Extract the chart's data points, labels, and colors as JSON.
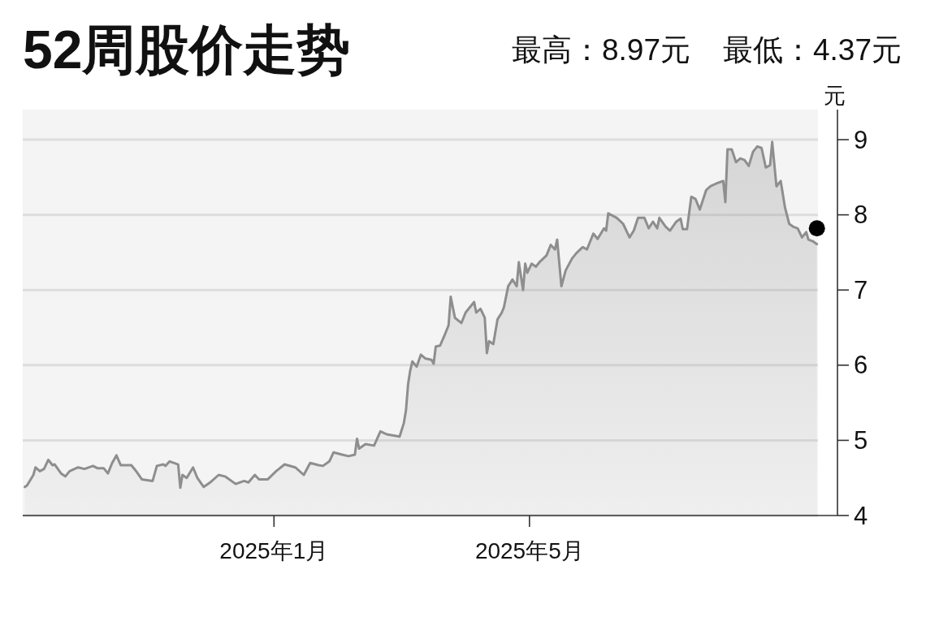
{
  "chart_data": {
    "type": "area",
    "title": "52周股价走势",
    "annotations": [
      "最高：8.97元",
      "最低：4.37元"
    ],
    "ylabel": "元",
    "xlim": [
      "2024-09-05",
      "2025-09-13T12:00"
    ],
    "xticks": [
      {
        "value": "2025-01-01",
        "label": "2025年1月"
      },
      {
        "value": "2025-05-01",
        "label": "2025年5月"
      }
    ],
    "ylim": [
      4,
      9.4
    ],
    "yticks": [
      4,
      5,
      6,
      7,
      8,
      9
    ],
    "grid": "y",
    "series": [
      {
        "color": "#8e8e8e",
        "x": [
          "2024-09-06",
          "2024-09-07",
          "2024-09-10",
          "2024-09-11",
          "2024-09-13",
          "2024-09-15",
          "2024-09-17",
          "2024-09-19",
          "2024-09-20",
          "2024-09-23",
          "2024-09-25",
          "2024-09-27",
          "2024-10-01",
          "2024-10-04",
          "2024-10-08",
          "2024-10-10",
          "2024-10-13",
          "2024-10-15",
          "2024-10-17",
          "2024-10-19",
          "2024-10-21",
          "2024-10-26",
          "2024-10-28",
          "2024-10-31",
          "2024-11-05",
          "2024-11-07",
          "2024-11-10",
          "2024-11-11",
          "2024-11-13",
          "2024-11-17",
          "2024-11-18",
          "2024-11-19",
          "2024-11-21",
          "2024-11-24",
          "2024-11-26",
          "2024-11-29",
          "2024-12-02",
          "2024-12-06",
          "2024-12-09",
          "2024-12-14",
          "2024-12-18",
          "2024-12-20",
          "2024-12-23",
          "2024-12-25",
          "2024-12-29",
          "2025-01-02",
          "2025-01-06",
          "2025-01-11",
          "2025-01-15",
          "2025-01-18",
          "2025-01-22",
          "2025-01-24",
          "2025-01-27",
          "2025-01-29",
          "2025-02-02",
          "2025-02-05",
          "2025-02-08",
          "2025-02-09",
          "2025-02-10",
          "2025-02-13",
          "2025-02-17",
          "2025-02-20",
          "2025-02-23",
          "2025-03-01",
          "2025-03-03",
          "2025-03-04",
          "2025-03-05",
          "2025-03-06",
          "2025-03-07",
          "2025-03-09",
          "2025-03-11",
          "2025-03-13",
          "2025-03-16",
          "2025-03-17",
          "2025-03-18",
          "2025-03-20",
          "2025-03-22",
          "2025-03-24",
          "2025-03-25",
          "2025-03-27",
          "2025-03-30",
          "2025-04-01",
          "2025-04-05",
          "2025-04-06",
          "2025-04-08",
          "2025-04-10",
          "2025-04-11",
          "2025-04-12",
          "2025-04-14",
          "2025-04-16",
          "2025-04-18",
          "2025-04-19",
          "2025-04-21",
          "2025-04-23",
          "2025-04-25",
          "2025-04-26",
          "2025-04-28",
          "2025-04-29",
          "2025-04-30",
          "2025-05-02",
          "2025-05-04",
          "2025-05-06",
          "2025-05-09",
          "2025-05-11",
          "2025-05-13",
          "2025-05-14",
          "2025-05-16",
          "2025-05-18",
          "2025-05-21",
          "2025-05-23",
          "2025-05-26",
          "2025-05-28",
          "2025-05-31",
          "2025-06-02",
          "2025-06-05",
          "2025-06-06",
          "2025-06-07",
          "2025-06-11",
          "2025-06-14",
          "2025-06-17",
          "2025-06-19",
          "2025-06-21",
          "2025-06-24",
          "2025-06-26",
          "2025-06-28",
          "2025-06-30",
          "2025-07-01",
          "2025-07-04",
          "2025-07-06",
          "2025-07-09",
          "2025-07-11",
          "2025-07-12",
          "2025-07-14",
          "2025-07-16",
          "2025-07-18",
          "2025-07-20",
          "2025-07-23",
          "2025-07-25",
          "2025-07-28",
          "2025-07-31",
          "2025-08-01",
          "2025-08-02",
          "2025-08-04",
          "2025-08-06",
          "2025-08-08",
          "2025-08-10",
          "2025-08-12",
          "2025-08-14",
          "2025-08-16",
          "2025-08-18",
          "2025-08-20",
          "2025-08-22",
          "2025-08-23",
          "2025-08-25",
          "2025-08-27",
          "2025-08-29",
          "2025-08-31",
          "2025-09-02",
          "2025-09-04",
          "2025-09-06",
          "2025-09-08",
          "2025-09-09",
          "2025-09-11",
          "2025-09-13"
        ],
        "values": [
          4.38,
          4.4,
          4.54,
          4.64,
          4.59,
          4.62,
          4.74,
          4.67,
          4.68,
          4.56,
          4.52,
          4.59,
          4.64,
          4.62,
          4.66,
          4.63,
          4.63,
          4.56,
          4.7,
          4.8,
          4.67,
          4.67,
          4.6,
          4.48,
          4.46,
          4.66,
          4.68,
          4.66,
          4.72,
          4.68,
          4.37,
          4.54,
          4.5,
          4.64,
          4.5,
          4.38,
          4.44,
          4.54,
          4.52,
          4.42,
          4.46,
          4.44,
          4.54,
          4.48,
          4.48,
          4.59,
          4.68,
          4.64,
          4.54,
          4.7,
          4.67,
          4.66,
          4.72,
          4.84,
          4.81,
          4.79,
          4.81,
          5.02,
          4.89,
          4.95,
          4.93,
          5.12,
          5.08,
          5.05,
          5.23,
          5.4,
          5.75,
          5.93,
          6.05,
          5.98,
          6.14,
          6.09,
          6.07,
          6.02,
          6.25,
          6.26,
          6.39,
          6.53,
          6.91,
          6.63,
          6.56,
          6.7,
          6.84,
          6.7,
          6.75,
          6.63,
          6.16,
          6.32,
          6.28,
          6.61,
          6.7,
          6.77,
          7.05,
          7.14,
          7.05,
          7.37,
          7.0,
          7.35,
          7.23,
          7.35,
          7.31,
          7.38,
          7.46,
          7.6,
          7.54,
          7.67,
          7.05,
          7.26,
          7.42,
          7.49,
          7.57,
          7.54,
          7.75,
          7.68,
          7.82,
          7.79,
          8.02,
          7.96,
          7.88,
          7.7,
          7.79,
          7.96,
          7.96,
          7.82,
          7.91,
          7.82,
          7.96,
          7.84,
          7.79,
          7.91,
          7.95,
          7.81,
          7.81,
          8.24,
          8.21,
          8.07,
          8.33,
          8.38,
          8.42,
          8.45,
          8.17,
          8.87,
          8.87,
          8.7,
          8.75,
          8.73,
          8.65,
          8.84,
          8.91,
          8.89,
          8.63,
          8.66,
          8.97,
          8.38,
          8.45,
          8.1,
          7.88,
          7.84,
          7.82,
          7.7,
          7.77,
          7.67,
          7.65,
          7.61
        ]
      },
      {
        "type": "scatter",
        "color": "#000000",
        "marker": "circle",
        "x": [
          "2025-09-13"
        ],
        "values": [
          7.82
        ]
      }
    ]
  }
}
